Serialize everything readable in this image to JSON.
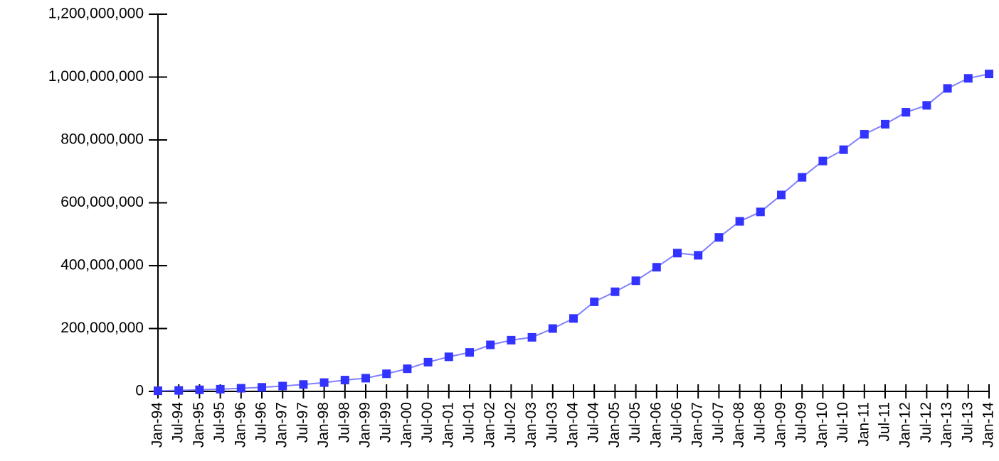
{
  "colors": {
    "series": "#3333ff",
    "line": "#8080ff",
    "axis": "#000000"
  },
  "chart_data": {
    "type": "line",
    "title": "",
    "xlabel": "",
    "ylabel": "",
    "ylim": [
      0,
      1200000000
    ],
    "yticks": [
      0,
      200000000,
      400000000,
      600000000,
      800000000,
      1000000000,
      1200000000
    ],
    "ytick_labels": [
      "0",
      "200,000,000",
      "400,000,000",
      "600,000,000",
      "800,000,000",
      "1,000,000,000",
      "1,200,000,000"
    ],
    "grid": false,
    "legend": "none",
    "categories": [
      "Jan-94",
      "Jul-94",
      "Jan-95",
      "Jul-95",
      "Jan-96",
      "Jul-96",
      "Jan-97",
      "Jul-97",
      "Jan-98",
      "Jul-98",
      "Jan-99",
      "Jul-99",
      "Jan-00",
      "Jul-00",
      "Jan-01",
      "Jul-01",
      "Jan-02",
      "Jul-02",
      "Jan-03",
      "Jul-03",
      "Jan-04",
      "Jul-04",
      "Jan-05",
      "Jul-05",
      "Jan-06",
      "Jul-06",
      "Jan-07",
      "Jul-07",
      "Jan-08",
      "Jul-08",
      "Jan-09",
      "Jul-09",
      "Jan-10",
      "Jul-10",
      "Jan-11",
      "Jul-11",
      "Jan-12",
      "Jul-12",
      "Jan-13",
      "Jul-13",
      "Jan-14"
    ],
    "values": [
      2000000,
      3000000,
      5000000,
      7000000,
      10000000,
      13000000,
      17000000,
      22000000,
      28000000,
      36000000,
      42000000,
      56000000,
      72000000,
      93000000,
      110000000,
      124000000,
      148000000,
      163000000,
      172000000,
      200000000,
      232000000,
      285000000,
      317000000,
      352000000,
      395000000,
      440000000,
      433000000,
      490000000,
      541000000,
      571000000,
      625000000,
      681000000,
      733000000,
      769000000,
      818000000,
      850000000,
      888000000,
      910000000,
      964000000,
      996000000,
      1010000000
    ]
  }
}
